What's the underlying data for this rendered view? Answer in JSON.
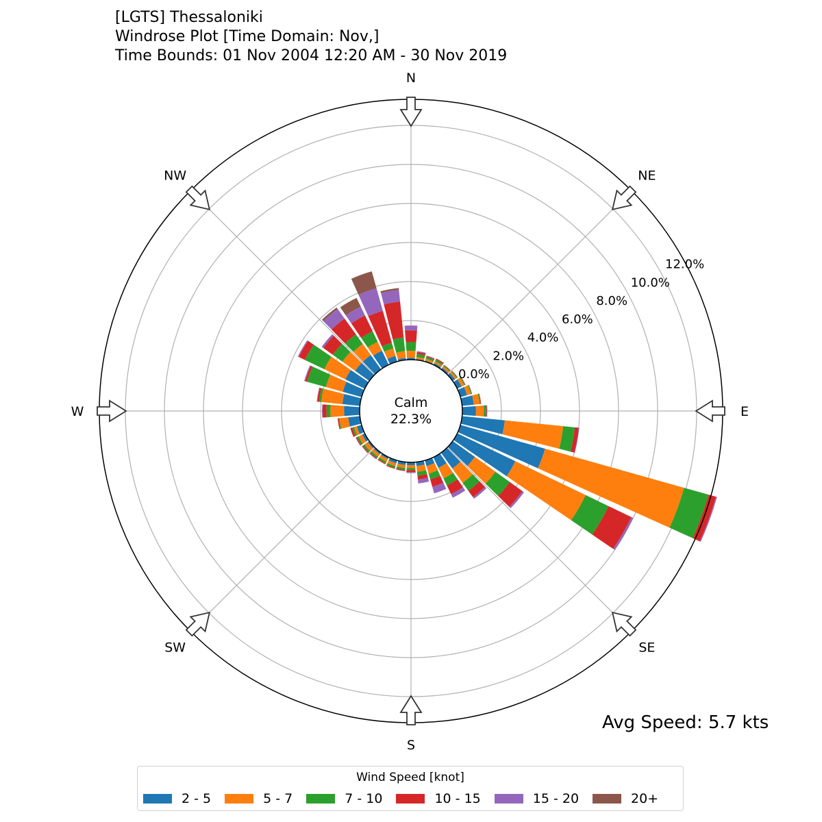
{
  "title_lines": [
    "[LGTS] Thessaloniki",
    "Windrose Plot [Time Domain: Nov,]",
    "Time Bounds: 01 Nov 2004 12:20 AM - 30 Nov 2019"
  ],
  "avg_speed": "Avg Speed: 5.7 kts",
  "chart_data": {
    "type": "windrose",
    "calm_label": "Calm",
    "calm_value": "22.3%",
    "compass": [
      "N",
      "NE",
      "E",
      "SE",
      "S",
      "SW",
      "W",
      "NW"
    ],
    "radial_ticks": [
      0,
      2,
      4,
      6,
      8,
      10,
      12
    ],
    "radial_tick_labels": [
      "0.0%",
      "2.0%",
      "4.0%",
      "6.0%",
      "8.0%",
      "10.0%",
      "12.0%"
    ],
    "rmax": 13.3,
    "legend_title": "Wind Speed [knot]",
    "bins": [
      "2 - 5",
      "5 - 7",
      "7 - 10",
      "10 - 15",
      "15 - 20",
      "20+"
    ],
    "colors": [
      "#1f77b4",
      "#ff7f0e",
      "#2ca02c",
      "#d62728",
      "#9467bd",
      "#8c564b"
    ],
    "directions": [
      0,
      10,
      20,
      30,
      40,
      50,
      60,
      70,
      80,
      90,
      100,
      110,
      120,
      130,
      140,
      150,
      160,
      170,
      180,
      190,
      200,
      210,
      220,
      230,
      240,
      250,
      260,
      270,
      280,
      290,
      300,
      310,
      320,
      330,
      340,
      350
    ],
    "values": [
      [
        0.1,
        0.35,
        0.45,
        0.6,
        0.25,
        0
      ],
      [
        0.05,
        0.1,
        0.15,
        0.1,
        0.05,
        0
      ],
      [
        0.05,
        0.1,
        0.1,
        0.05,
        0.02,
        0
      ],
      [
        0.1,
        0.1,
        0.1,
        0.05,
        0,
        0
      ],
      [
        0.1,
        0.1,
        0.05,
        0.03,
        0,
        0
      ],
      [
        0.15,
        0.1,
        0.05,
        0.02,
        0,
        0
      ],
      [
        0.25,
        0.15,
        0.05,
        0.02,
        0,
        0
      ],
      [
        0.35,
        0.2,
        0.05,
        0.02,
        0,
        0
      ],
      [
        0.6,
        0.3,
        0.05,
        0.03,
        0,
        0
      ],
      [
        0.7,
        0.4,
        0.12,
        0.03,
        0.03,
        0
      ],
      [
        2.2,
        3.0,
        0.6,
        0.2,
        0.03,
        0
      ],
      [
        4.5,
        7.4,
        1.3,
        0.4,
        0.05,
        0
      ],
      [
        3.3,
        4.0,
        1.3,
        1.3,
        0.1,
        0
      ],
      [
        1.4,
        1.3,
        0.9,
        0.8,
        0.1,
        0
      ],
      [
        1.0,
        0.9,
        0.5,
        0.4,
        0.1,
        0
      ],
      [
        0.6,
        0.6,
        0.4,
        0.5,
        0.2,
        0
      ],
      [
        0.3,
        0.4,
        0.3,
        0.4,
        0.35,
        0
      ],
      [
        0.2,
        0.3,
        0.2,
        0.2,
        0.2,
        0
      ],
      [
        0.15,
        0.15,
        0.1,
        0.1,
        0.05,
        0
      ],
      [
        0.15,
        0.15,
        0.1,
        0.05,
        0.02,
        0
      ],
      [
        0.15,
        0.15,
        0.1,
        0.05,
        0,
        0
      ],
      [
        0.1,
        0.15,
        0.1,
        0.05,
        0,
        0
      ],
      [
        0.1,
        0.15,
        0.1,
        0.05,
        0.02,
        0
      ],
      [
        0.1,
        0.2,
        0.1,
        0.05,
        0.02,
        0
      ],
      [
        0.15,
        0.2,
        0.1,
        0.05,
        0.02,
        0
      ],
      [
        0.25,
        0.15,
        0.1,
        0.1,
        0,
        0
      ],
      [
        0.6,
        0.45,
        0.05,
        0.05,
        0,
        0
      ],
      [
        0.8,
        0.7,
        0.2,
        0.2,
        0.03,
        0
      ],
      [
        0.9,
        1.1,
        0.1,
        0.1,
        0.02,
        0
      ],
      [
        1.0,
        0.9,
        1.0,
        0.1,
        0.05,
        0
      ],
      [
        1.1,
        1.2,
        1.1,
        0.35,
        0.05,
        0
      ],
      [
        0.9,
        0.8,
        0.6,
        0.6,
        0.1,
        0
      ],
      [
        0.9,
        0.7,
        0.6,
        1.0,
        0.6,
        0.1
      ],
      [
        0.8,
        0.5,
        0.6,
        0.9,
        0.5,
        0.5
      ],
      [
        0.3,
        0.4,
        0.3,
        1.7,
        1.2,
        0.9
      ],
      [
        0.1,
        0.35,
        0.7,
        1.85,
        0.6,
        0.1
      ]
    ]
  }
}
